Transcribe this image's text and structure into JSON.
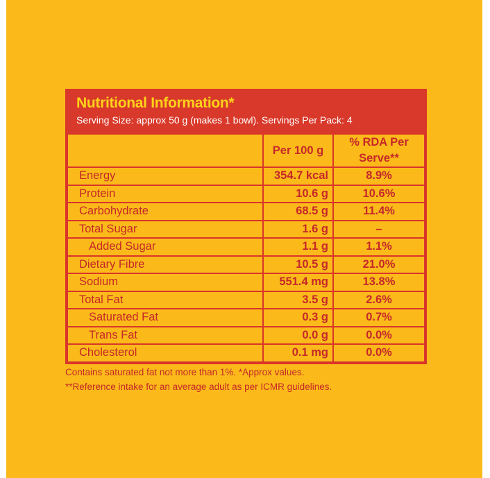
{
  "label": {
    "title": "Nutritional Information*",
    "serving": "Serving Size: approx 50 g (makes 1 bowl). Servings Per Pack: 4",
    "columns": {
      "name": "",
      "per100": "Per 100 g",
      "rda": "% RDA Per Serve**"
    },
    "rows": [
      {
        "name": "Energy",
        "per100": "354.7 kcal",
        "rda": "8.9%"
      },
      {
        "name": "Protein",
        "per100": "10.6 g",
        "rda": "10.6%"
      },
      {
        "name": "Carbohydrate",
        "per100": "68.5 g",
        "rda": "11.4%"
      },
      {
        "name": "Total Sugar",
        "per100": "1.6 g",
        "rda": "–"
      },
      {
        "name": "Added Sugar",
        "per100": "1.1 g",
        "rda": "1.1%"
      },
      {
        "name": "Dietary Fibre",
        "per100": "10.5 g",
        "rda": "21.0%"
      },
      {
        "name": "Sodium",
        "per100": "551.4 mg",
        "rda": "13.8%"
      },
      {
        "name": "Total Fat",
        "per100": "3.5 g",
        "rda": "2.6%"
      },
      {
        "name": "Saturated Fat",
        "per100": "0.3 g",
        "rda": "0.7%"
      },
      {
        "name": "Trans Fat",
        "per100": "0.0 g",
        "rda": "0.0%"
      },
      {
        "name": "Cholesterol",
        "per100": "0.1 mg",
        "rda": "0.0%"
      }
    ],
    "footnotes": [
      "Contains saturated fat not more than 1%. *Approx values.",
      "**Reference intake for an average adult as per ICMR guidelines."
    ]
  },
  "colors": {
    "background": "#FBBA1A",
    "accent": "#D9392A",
    "text": "#C6272A",
    "title": "#FFD21A"
  }
}
